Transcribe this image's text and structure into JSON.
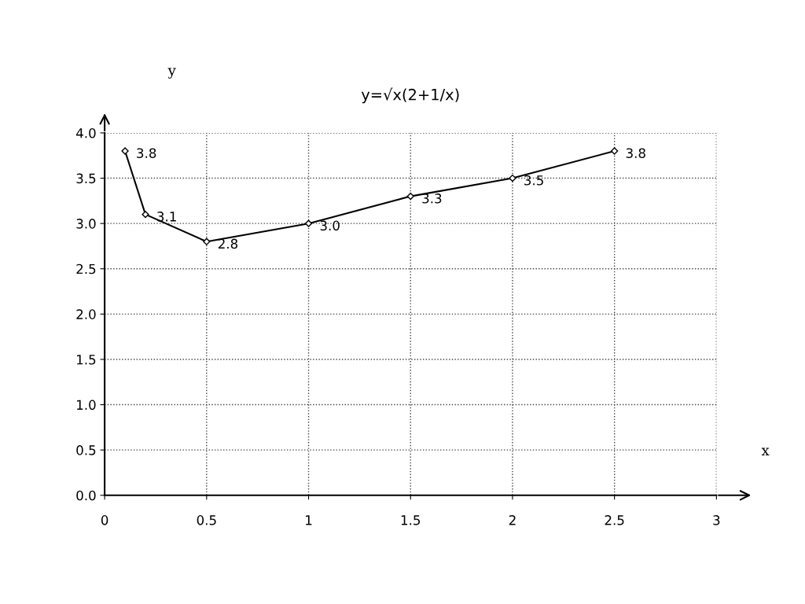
{
  "chart_data": {
    "type": "line",
    "title": "y=√x(2+1/x)",
    "xlabel": "x",
    "ylabel": "y",
    "x": [
      0.1,
      0.2,
      0.5,
      1,
      1.5,
      2,
      2.5
    ],
    "series": [
      {
        "color": "#000000",
        "values": [
          3.8,
          3.1,
          2.8,
          3.0,
          3.3,
          3.5,
          3.8
        ],
        "value_labels": [
          "3.8",
          "3.1",
          "2.8",
          "3.0",
          "3.3",
          "3.5",
          "3.8"
        ]
      }
    ],
    "marker": "diamond",
    "line_style": "solid",
    "grid": true,
    "xlim": [
      0,
      3
    ],
    "xticks": [
      0,
      0.5,
      1,
      1.5,
      2,
      2.5,
      3
    ],
    "ylim": [
      0,
      4
    ],
    "yticks": [
      {
        "value": 0,
        "label": "0.0"
      },
      {
        "value": 0.5,
        "label": "0.5"
      },
      {
        "value": 1,
        "label": "1.0"
      },
      {
        "value": 1.5,
        "label": "1.5"
      },
      {
        "value": 2,
        "label": "2.0"
      },
      {
        "value": 2.5,
        "label": "2.5"
      },
      {
        "value": 3,
        "label": "3.0"
      },
      {
        "value": 3.5,
        "label": "3.5"
      },
      {
        "value": 4,
        "label": "4.0"
      }
    ]
  }
}
